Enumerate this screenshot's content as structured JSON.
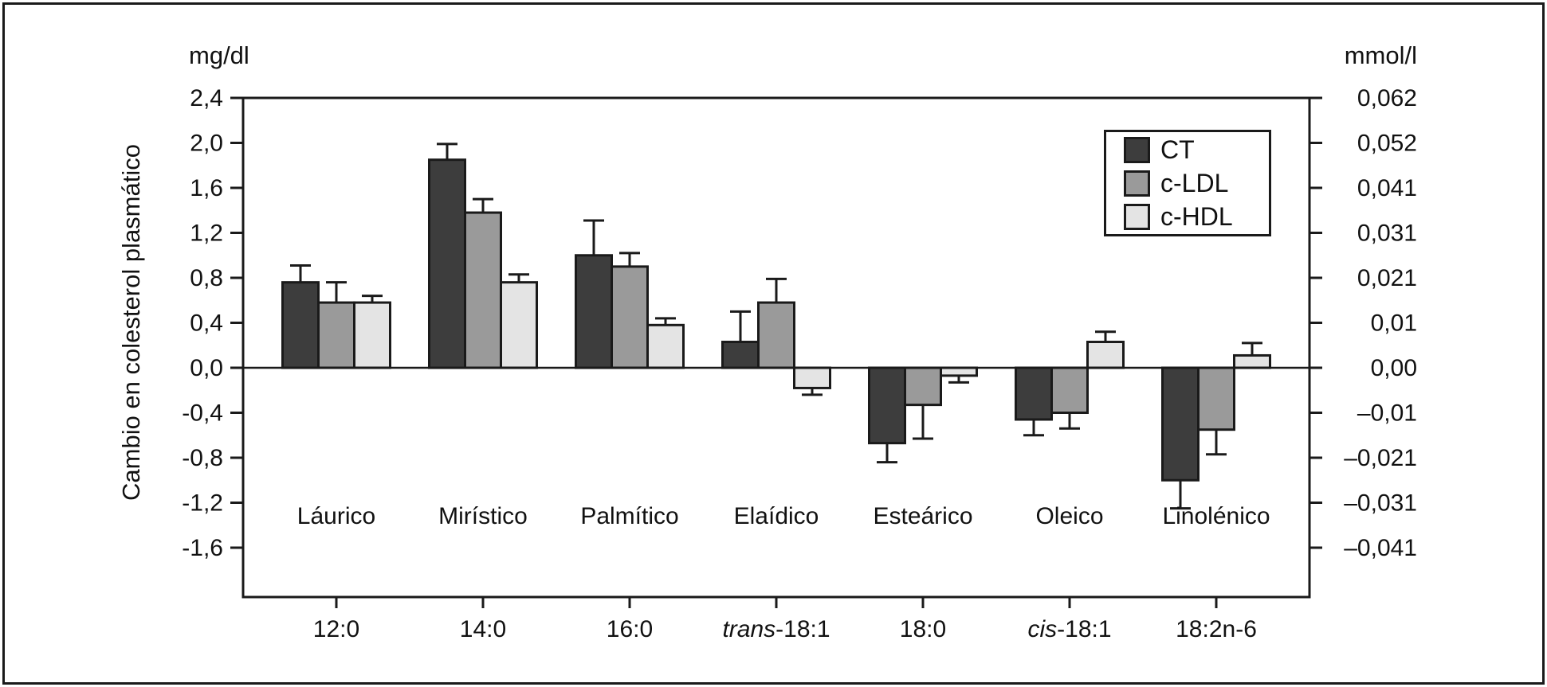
{
  "figure": {
    "left_unit": "mg/dl",
    "right_unit": "mmol/l",
    "y_axis_label": "Cambio en colesterol plasmático"
  },
  "legend": {
    "position": "top-right",
    "items": [
      {
        "label": "CT",
        "color": "#3d3d3d"
      },
      {
        "label": "c-LDL",
        "color": "#9a9a9a"
      },
      {
        "label": "c-HDL",
        "color": "#e4e4e4"
      }
    ]
  },
  "chart_data": {
    "type": "bar",
    "title": "",
    "xlabel": "",
    "ylabel_left": "Cambio en colesterol plasmático (mg/dl)",
    "ylabel_right": "mmol/l",
    "grid": false,
    "ylim_left": [
      -2.0,
      2.4
    ],
    "categories": [
      {
        "name": "Láurico",
        "notation_prefix_italic": "",
        "notation": "12:0"
      },
      {
        "name": "Mirístico",
        "notation_prefix_italic": "",
        "notation": "14:0"
      },
      {
        "name": "Palmítico",
        "notation_prefix_italic": "",
        "notation": "16:0"
      },
      {
        "name": "Elaídico",
        "notation_prefix_italic": "trans",
        "notation": "-18:1"
      },
      {
        "name": "Esteárico",
        "notation_prefix_italic": "",
        "notation": "18:0"
      },
      {
        "name": "Oleico",
        "notation_prefix_italic": "cis",
        "notation": "-18:1"
      },
      {
        "name": "Linolénico",
        "notation_prefix_italic": "",
        "notation": "18:2n-6"
      }
    ],
    "series": [
      {
        "name": "CT",
        "color": "#3d3d3d",
        "values": [
          0.76,
          1.85,
          1.0,
          0.23,
          -0.67,
          -0.46,
          -1.0
        ],
        "errors": [
          0.15,
          0.14,
          0.31,
          0.27,
          0.17,
          0.14,
          0.25
        ]
      },
      {
        "name": "c-LDL",
        "color": "#9a9a9a",
        "values": [
          0.58,
          1.38,
          0.9,
          0.58,
          -0.33,
          -0.4,
          -0.55
        ],
        "errors": [
          0.18,
          0.12,
          0.12,
          0.21,
          0.3,
          0.14,
          0.22
        ]
      },
      {
        "name": "c-HDL",
        "color": "#e4e4e4",
        "values": [
          0.58,
          0.76,
          0.38,
          -0.18,
          -0.07,
          0.23,
          0.11
        ],
        "errors": [
          0.06,
          0.07,
          0.06,
          0.06,
          0.06,
          0.09,
          0.11
        ]
      }
    ],
    "left_axis": {
      "tick_values": [
        2.4,
        2.0,
        1.6,
        1.2,
        0.8,
        0.4,
        0.0,
        -0.4,
        -0.8,
        -1.2,
        -1.6
      ],
      "tick_labels": [
        "2,4",
        "2,0",
        "1,6",
        "1,2",
        "0,8",
        "0,4",
        "0,0",
        "-0,4",
        "-0,8",
        "-1,2",
        "-1,6"
      ]
    },
    "right_axis": {
      "tick_labels": [
        "0,062",
        "0,052",
        "0,041",
        "0,031",
        "0,021",
        "0,01",
        "0,00",
        "–0,01",
        "–0,021",
        "–0,031",
        "–0,041"
      ]
    }
  }
}
